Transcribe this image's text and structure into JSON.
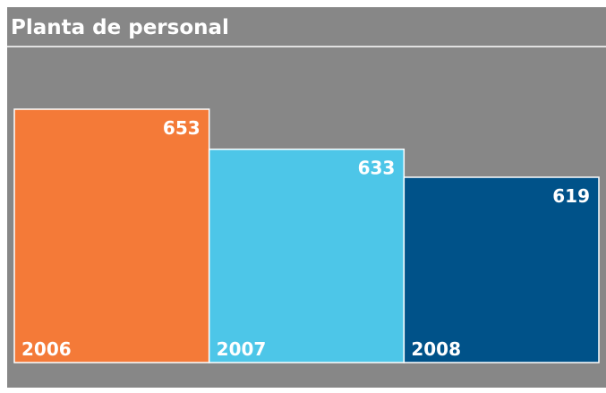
{
  "chart_data": {
    "type": "bar",
    "title": "Planta de personal",
    "categories": [
      "2006",
      "2007",
      "2008"
    ],
    "values": [
      653,
      633,
      619
    ],
    "colors": [
      "#f47a38",
      "#4dc6e8",
      "#005289"
    ]
  }
}
